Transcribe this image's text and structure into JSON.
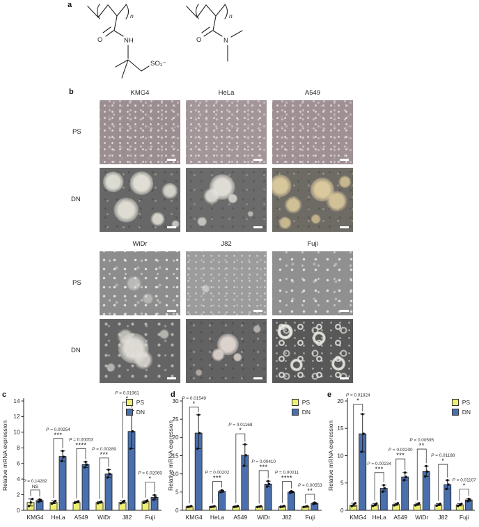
{
  "panel_labels": {
    "a": "a",
    "b": "b",
    "c": "c",
    "d": "d",
    "e": "e"
  },
  "panel_a": {
    "n": "n",
    "O": "O",
    "NH": "NH",
    "N": "N",
    "SO3": "SO₃⁻"
  },
  "panel_b": {
    "row_labels": [
      "PS",
      "DN"
    ],
    "blocks": [
      {
        "columns": [
          "KMG4",
          "HeLa",
          "A549"
        ]
      },
      {
        "columns": [
          "WiDr",
          "J82",
          "Fuji"
        ]
      }
    ]
  },
  "charts_common": {
    "ylabel": "Relative mRNA expression",
    "legend": [
      "PS",
      "DN"
    ],
    "colors": {
      "ps": "#ecef72",
      "dn": "#4a6fad"
    }
  },
  "chart_data": [
    {
      "panel": "c",
      "type": "bar",
      "categories": [
        "KMG4",
        "HeLa",
        "A549",
        "WiDr",
        "J82",
        "Fuji"
      ],
      "ylim": [
        0,
        14
      ],
      "yticks": [
        0,
        2,
        4,
        6,
        8,
        10,
        12,
        14
      ],
      "series": [
        {
          "name": "PS",
          "values": [
            1.0,
            1.0,
            1.0,
            1.0,
            1.0,
            1.1
          ]
        },
        {
          "name": "DN",
          "values": [
            1.25,
            6.9,
            5.85,
            4.65,
            10.1,
            1.65
          ]
        }
      ],
      "points_ps": [
        [
          0.55,
          1.0,
          1.45
        ],
        [
          0.85,
          1.0,
          1.2
        ],
        [
          0.95,
          1.05,
          1.15
        ],
        [
          0.9,
          1.0,
          1.1
        ],
        [
          0.9,
          1.05,
          1.2
        ],
        [
          0.95,
          1.1,
          1.25
        ]
      ],
      "points_dn": [
        [
          1.1,
          1.25,
          1.4
        ],
        [
          6.3,
          6.85,
          7.6
        ],
        [
          5.5,
          5.85,
          6.2
        ],
        [
          4.2,
          4.65,
          5.2
        ],
        [
          7.9,
          10.1,
          12.8
        ],
        [
          1.35,
          1.65,
          1.95
        ]
      ],
      "sig": [
        {
          "p": "P = 0.14282",
          "stars": "NS",
          "h": 2.6
        },
        {
          "p": "P = 0.00254",
          "stars": "***",
          "h": 9.2
        },
        {
          "p": "P = 0.00053",
          "stars": "****",
          "h": 7.9
        },
        {
          "p": "P = 0.00289",
          "stars": "***",
          "h": 6.7
        },
        {
          "p": "P = 0.01961",
          "stars": "*",
          "h": 13.85
        },
        {
          "p": "P = 0.02069",
          "stars": "*",
          "h": 3.6
        }
      ]
    },
    {
      "panel": "d",
      "type": "bar",
      "categories": [
        "KMG4",
        "HeLa",
        "A549",
        "WiDr",
        "J82",
        "Fuji"
      ],
      "ylim": [
        0,
        30
      ],
      "yticks": [
        0,
        5,
        10,
        15,
        20,
        25,
        30
      ],
      "series": [
        {
          "name": "PS",
          "values": [
            1.0,
            1.0,
            1.0,
            1.0,
            1.0,
            1.0
          ]
        },
        {
          "name": "DN",
          "values": [
            21.2,
            5.2,
            15.1,
            7.2,
            5.0,
            1.9
          ]
        }
      ],
      "points_ps": [
        [
          0.9,
          1.0,
          1.15
        ],
        [
          0.9,
          1.0,
          1.1
        ],
        [
          0.9,
          1.0,
          1.2
        ],
        [
          0.9,
          1.0,
          1.1
        ],
        [
          0.9,
          1.0,
          1.2
        ],
        [
          0.9,
          1.0,
          1.1
        ]
      ],
      "points_dn": [
        [
          16.9,
          21.2,
          26.2
        ],
        [
          4.95,
          5.2,
          5.5
        ],
        [
          12.2,
          15.1,
          18.1
        ],
        [
          6.5,
          7.2,
          8.0
        ],
        [
          4.8,
          5.0,
          5.25
        ],
        [
          1.7,
          1.9,
          2.1
        ]
      ],
      "sig": [
        {
          "p": "P = 0.01549",
          "stars": "*",
          "h": 28.3
        },
        {
          "p": "P = 0.00202",
          "stars": "***",
          "h": 7.9
        },
        {
          "p": "P = 0.01168",
          "stars": "*",
          "h": 21.0
        },
        {
          "p": "P = 0.00410",
          "stars": "***",
          "h": 10.9
        },
        {
          "p": "P = 0.00011",
          "stars": "****",
          "h": 7.9
        },
        {
          "p": "P = 0.00553",
          "stars": "**",
          "h": 4.4
        }
      ]
    },
    {
      "panel": "e",
      "type": "bar",
      "categories": [
        "KMG4",
        "HeLa",
        "A549",
        "WiDr",
        "J82",
        "Fuji"
      ],
      "ylim": [
        0,
        20
      ],
      "yticks": [
        0,
        5,
        10,
        15,
        20
      ],
      "series": [
        {
          "name": "PS",
          "values": [
            0.95,
            1.0,
            1.05,
            1.05,
            1.0,
            1.0
          ]
        },
        {
          "name": "DN",
          "values": [
            14.0,
            4.0,
            6.1,
            7.1,
            4.7,
            1.9
          ]
        }
      ],
      "points_ps": [
        [
          0.75,
          1.0,
          1.3
        ],
        [
          0.8,
          1.0,
          1.25
        ],
        [
          0.9,
          1.05,
          1.3
        ],
        [
          0.9,
          1.05,
          1.3
        ],
        [
          0.85,
          1.0,
          1.2
        ],
        [
          0.8,
          1.0,
          1.2
        ]
      ],
      "points_dn": [
        [
          10.7,
          14.0,
          17.6
        ],
        [
          3.4,
          4.0,
          4.6
        ],
        [
          5.5,
          6.1,
          6.9
        ],
        [
          6.2,
          7.1,
          8.1
        ],
        [
          3.9,
          4.7,
          5.5
        ],
        [
          1.65,
          1.9,
          2.1
        ]
      ],
      "sig": [
        {
          "p": "P = 0.01824",
          "stars": "*",
          "h": 19.4
        },
        {
          "p": "P = 0.00234",
          "stars": "***",
          "h": 6.9
        },
        {
          "p": "P = 0.00200",
          "stars": "***",
          "h": 9.4
        },
        {
          "p": "P = 0.00595",
          "stars": "**",
          "h": 11.2
        },
        {
          "p": "P = 0.01188",
          "stars": "*",
          "h": 8.4
        },
        {
          "p": "P = 0.01107",
          "stars": "*",
          "h": 3.9
        }
      ]
    }
  ]
}
